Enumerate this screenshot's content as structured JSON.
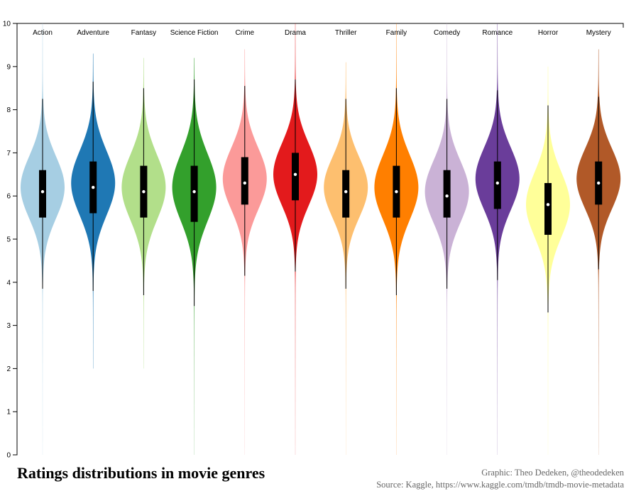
{
  "chart_data": {
    "type": "violin",
    "title": "Ratings distributions in movie genres",
    "ylim": [
      0,
      10
    ],
    "yticks": [
      0,
      1,
      2,
      3,
      4,
      5,
      6,
      7,
      8,
      9,
      10
    ],
    "grid": false,
    "categories": [
      "Action",
      "Adventure",
      "Fantasy",
      "Science Fiction",
      "Crime",
      "Drama",
      "Thriller",
      "Family",
      "Comedy",
      "Romance",
      "Horror",
      "Mystery"
    ],
    "series": [
      {
        "name": "Action",
        "color": "#a6cee3",
        "min": 3.85,
        "q1": 5.5,
        "median": 6.1,
        "q3": 6.6,
        "max": 8.25,
        "mode": 6.2,
        "spread": 0.72,
        "tail_low": 0.0,
        "tail_high": 10.0
      },
      {
        "name": "Adventure",
        "color": "#1f78b4",
        "min": 3.8,
        "q1": 5.6,
        "median": 6.2,
        "q3": 6.8,
        "max": 8.65,
        "mode": 6.3,
        "spread": 0.75,
        "tail_low": 2.0,
        "tail_high": 9.3
      },
      {
        "name": "Fantasy",
        "color": "#b2df8a",
        "min": 3.7,
        "q1": 5.5,
        "median": 6.1,
        "q3": 6.7,
        "max": 8.5,
        "mode": 6.2,
        "spread": 0.75,
        "tail_low": 2.0,
        "tail_high": 9.2
      },
      {
        "name": "Science Fiction",
        "color": "#33a02c",
        "min": 3.45,
        "q1": 5.4,
        "median": 6.1,
        "q3": 6.7,
        "max": 8.7,
        "mode": 6.2,
        "spread": 0.78,
        "tail_low": 0.0,
        "tail_high": 9.2
      },
      {
        "name": "Crime",
        "color": "#fb9a99",
        "min": 4.15,
        "q1": 5.8,
        "median": 6.3,
        "q3": 6.9,
        "max": 8.55,
        "mode": 6.4,
        "spread": 0.72,
        "tail_low": 0.0,
        "tail_high": 9.4
      },
      {
        "name": "Drama",
        "color": "#e31a1c",
        "min": 4.25,
        "q1": 5.9,
        "median": 6.5,
        "q3": 7.0,
        "max": 8.7,
        "mode": 6.5,
        "spread": 0.72,
        "tail_low": 0.0,
        "tail_high": 10.0
      },
      {
        "name": "Thriller",
        "color": "#fdbf6f",
        "min": 3.85,
        "q1": 5.5,
        "median": 6.1,
        "q3": 6.6,
        "max": 8.25,
        "mode": 6.2,
        "spread": 0.7,
        "tail_low": 0.0,
        "tail_high": 9.1
      },
      {
        "name": "Family",
        "color": "#ff7f00",
        "min": 3.7,
        "q1": 5.5,
        "median": 6.1,
        "q3": 6.7,
        "max": 8.5,
        "mode": 6.2,
        "spread": 0.75,
        "tail_low": 0.0,
        "tail_high": 10.0
      },
      {
        "name": "Comedy",
        "color": "#cab2d6",
        "min": 3.85,
        "q1": 5.5,
        "median": 6.0,
        "q3": 6.6,
        "max": 8.25,
        "mode": 6.1,
        "spread": 0.72,
        "tail_low": 0.0,
        "tail_high": 10.0
      },
      {
        "name": "Romance",
        "color": "#6a3d9a",
        "min": 4.05,
        "q1": 5.7,
        "median": 6.3,
        "q3": 6.8,
        "max": 8.45,
        "mode": 6.4,
        "spread": 0.72,
        "tail_low": 0.0,
        "tail_high": 10.0
      },
      {
        "name": "Horror",
        "color": "#ffff99",
        "min": 3.3,
        "q1": 5.1,
        "median": 5.8,
        "q3": 6.3,
        "max": 8.1,
        "mode": 5.8,
        "spread": 0.75,
        "tail_low": 0.0,
        "tail_high": 9.0
      },
      {
        "name": "Mystery",
        "color": "#b15928",
        "min": 4.3,
        "q1": 5.8,
        "median": 6.3,
        "q3": 6.8,
        "max": 8.3,
        "mode": 6.4,
        "spread": 0.7,
        "tail_low": 0.0,
        "tail_high": 9.4
      }
    ]
  },
  "footer": {
    "title": "Ratings distributions in movie genres",
    "credit_line1": "Graphic: Theo Dedeken, @theodedeken",
    "credit_line2": "Source: Kaggle, https://www.kaggle.com/tmdb/tmdb-movie-metadata"
  }
}
